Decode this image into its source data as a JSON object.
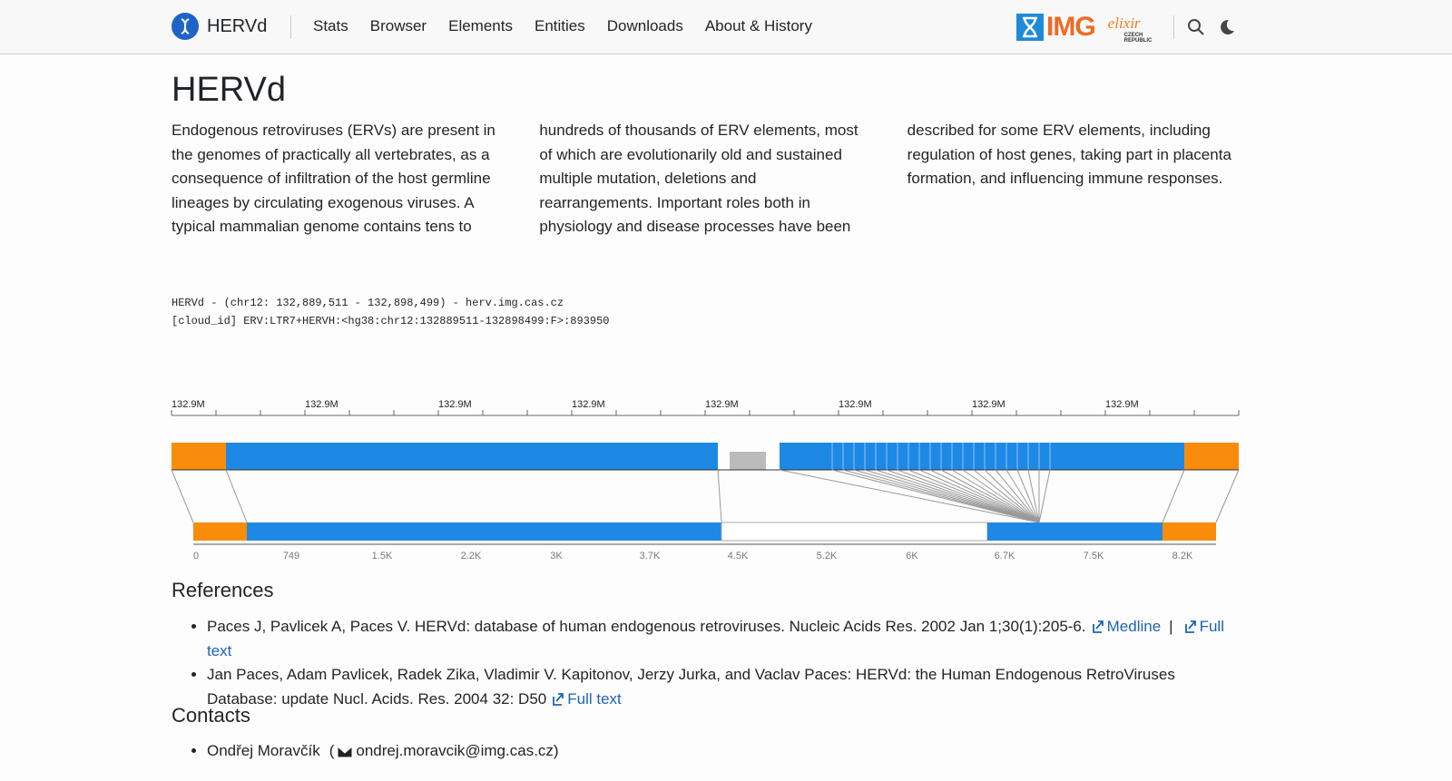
{
  "nav": {
    "brand": "HERVd",
    "links": [
      "Stats",
      "Browser",
      "Elements",
      "Entities",
      "Downloads",
      "About & History"
    ],
    "logos": [
      "IMG",
      "elixir",
      "CZECH REPUBLIC"
    ]
  },
  "main": {
    "title": "HERVd",
    "intro": "Endogenous retroviruses (ERVs) are present in the genomes of practically all vertebrates, as a consequence of infiltration of the host germline lineages by circulating exogenous viruses. A typical mammalian genome contains tens to hundreds of thousands of ERV elements, most of which are evolutionarily old and sustained multiple mutation, deletions and rearrangements. Important roles both in physiology and disease processes have been described for some ERV elements, including regulation of host genes, taking part in placenta formation, and influencing immune responses."
  },
  "browser": {
    "header": [
      "HERVd - (chr12: 132,889,511 - 132,898,499) - herv.img.cas.cz",
      "[cloud_id] ERV:LTR7+HERVH:<hg38:chr12:132889511-132898499:F>:893950"
    ],
    "top_ticks": [
      "132.9M",
      "132.9M",
      "132.9M",
      "132.9M",
      "132.9M",
      "132.9M",
      "132.9M",
      "132.9M"
    ],
    "bottom_ticks": [
      "0",
      "749",
      "1.5K",
      "2.2K",
      "3K",
      "3.7K",
      "4.5K",
      "5.2K",
      "6K",
      "6.7K",
      "7.5K",
      "8.2K"
    ]
  },
  "references": {
    "title": "References",
    "separator": "|",
    "items": [
      {
        "text": "Paces J, Pavlicek A, Paces V. HERVd: database of human endogenous retroviruses. Nucleic Acids Res. 2002 Jan 1;30(1):205-6.",
        "links": [
          "Medline",
          "Full text"
        ]
      },
      {
        "text": "Jan Paces, Adam Pavlicek, Radek Zika, Vladimir V. Kapitonov, Jerzy Jurka, and Vaclav Paces: HERVd: the Human Endogenous RetroViruses Database: update Nucl. Acids. Res. 2004 32: D50",
        "links": [
          "Full text"
        ]
      }
    ]
  },
  "contacts": {
    "title": "Contacts",
    "items": [
      {
        "name": "Ondřej Moravčík",
        "open": "(",
        "email": "ondrej.moravcik@img.cas.cz",
        "close": ")"
      }
    ]
  }
}
